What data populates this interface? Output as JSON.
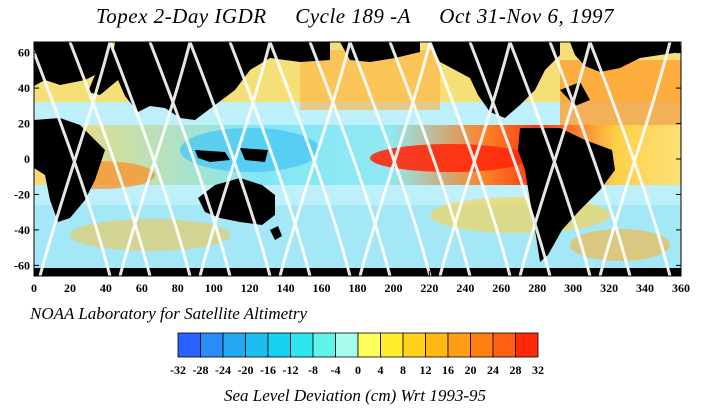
{
  "title": "Topex 2-Day IGDR     Cycle 189 -A     Oct 31-Nov 6, 1997",
  "subtitle": "NOAA Laboratory for Satellite Altimetry",
  "caption": "Sea Level Deviation (cm)  Wrt 1993-95",
  "axes": {
    "x_ticks": [
      "0",
      "20",
      "40",
      "60",
      "80",
      "100",
      "120",
      "140",
      "160",
      "180",
      "200",
      "220",
      "240",
      "260",
      "280",
      "300",
      "320",
      "340",
      "360"
    ],
    "y_ticks": [
      "60",
      "40",
      "20",
      "0",
      "-20",
      "-40",
      "-60"
    ]
  },
  "legend": {
    "labels": [
      "-32",
      "-28",
      "-24",
      "-20",
      "-16",
      "-12",
      "-8",
      "-4",
      "0",
      "4",
      "8",
      "12",
      "16",
      "20",
      "24",
      "28",
      "32"
    ],
    "colors": [
      "#2a62ff",
      "#2a8cf8",
      "#24a8f2",
      "#1cbef0",
      "#14d2f2",
      "#2fe6ee",
      "#5ef4e8",
      "#a8fcee",
      "#ffff5a",
      "#ffee2e",
      "#ffd21c",
      "#ffb814",
      "#ff9e12",
      "#ff8012",
      "#ff6010",
      "#ff2a0c"
    ]
  },
  "colors": {
    "land": "#000000",
    "ocean_neutral": "#c8f4ff"
  }
}
